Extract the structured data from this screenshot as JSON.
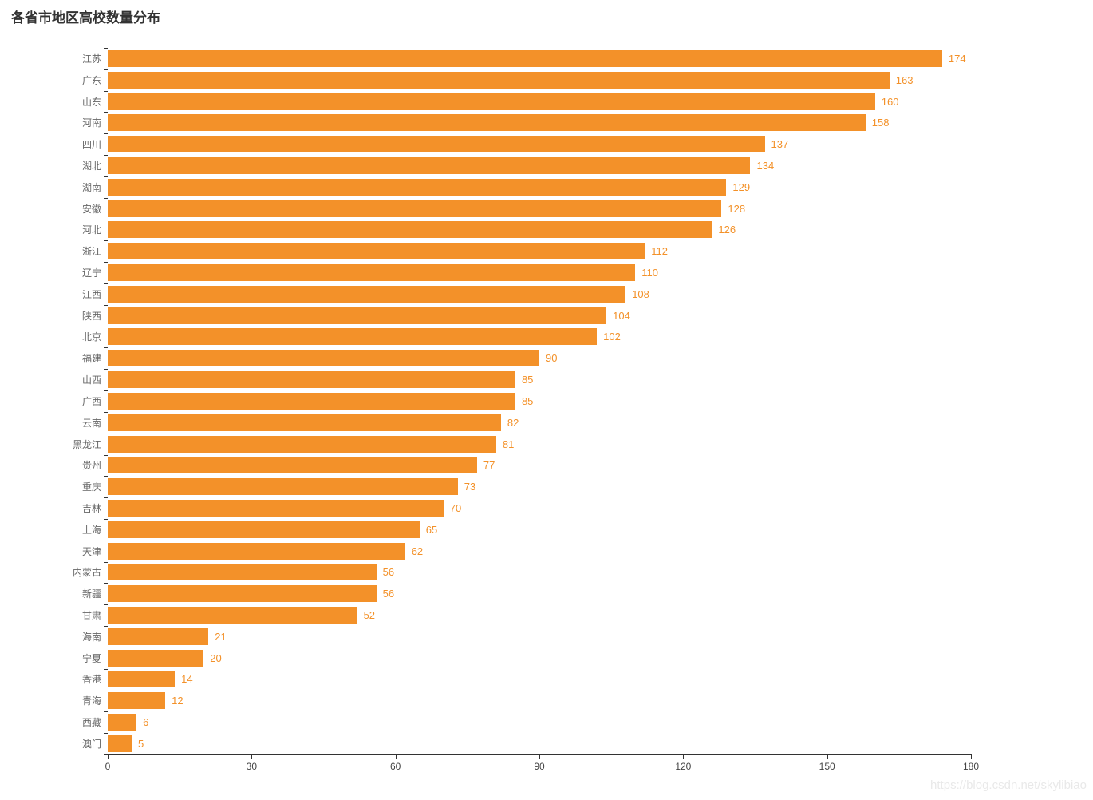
{
  "page": {
    "title": "各省市地区高校数量分布",
    "watermark": "https://blog.csdn.net/skylibiao"
  },
  "chart_data": {
    "type": "bar",
    "orientation": "horizontal",
    "title": "各省市地区高校数量分布",
    "categories": [
      "江苏",
      "广东",
      "山东",
      "河南",
      "四川",
      "湖北",
      "湖南",
      "安徽",
      "河北",
      "浙江",
      "辽宁",
      "江西",
      "陕西",
      "北京",
      "福建",
      "山西",
      "广西",
      "云南",
      "黑龙江",
      "贵州",
      "重庆",
      "吉林",
      "上海",
      "天津",
      "内蒙古",
      "新疆",
      "甘肃",
      "海南",
      "宁夏",
      "香港",
      "青海",
      "西藏",
      "澳门"
    ],
    "values": [
      174,
      163,
      160,
      158,
      137,
      134,
      129,
      128,
      126,
      112,
      110,
      108,
      104,
      102,
      90,
      85,
      85,
      82,
      81,
      77,
      73,
      70,
      65,
      62,
      56,
      56,
      52,
      21,
      20,
      14,
      12,
      6,
      5
    ],
    "xlabel": "",
    "ylabel": "",
    "xlim": [
      0,
      180
    ],
    "x_ticks": [
      0,
      30,
      60,
      90,
      120,
      150,
      180
    ],
    "grid": false,
    "legend": false,
    "value_labels": "end-of-bar",
    "bar_color": "#F39129",
    "value_label_color": "#F39129",
    "axis_color": "#333333",
    "y_label_color": "#666666",
    "x_label_color": "#444444"
  }
}
